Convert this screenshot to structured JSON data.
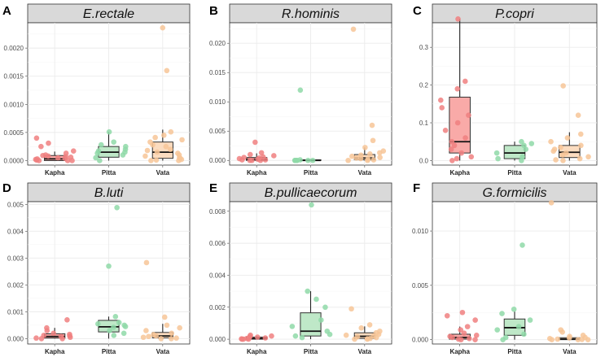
{
  "colors": {
    "Kapha": "#f08080",
    "Pitta": "#8fd9a8",
    "Vata": "#f7c598",
    "box_fill": {
      "Kapha": "#f9aaa8",
      "Pitta": "#bfe8c8",
      "Vata": "#fbdcc0"
    },
    "strip_fill": "#d9d9d9"
  },
  "chart_data": [
    {
      "type": "box",
      "letter": "A",
      "title": "E.rectale",
      "categories": [
        "Kapha",
        "Pitta",
        "Vata"
      ],
      "ylim": [
        -8e-05,
        0.00245
      ],
      "yticks": [
        0.0,
        0.0005,
        0.001,
        0.0015,
        0.002
      ],
      "ytick_labels": [
        "0.0000",
        "0.0005",
        "0.0010",
        "0.0015",
        "0.0020"
      ],
      "boxes": [
        {
          "group": "Kapha",
          "q1": 0.0,
          "median": 3e-05,
          "q3": 9e-05,
          "whisker_low": 0.0,
          "whisker_high": 0.00016
        },
        {
          "group": "Pitta",
          "q1": 6e-05,
          "median": 0.00015,
          "q3": 0.00025,
          "whisker_low": 0.0,
          "whisker_high": 0.00051
        },
        {
          "group": "Vata",
          "q1": 4e-05,
          "median": 0.00015,
          "q3": 0.00033,
          "whisker_low": 0.0,
          "whisker_high": 0.00055
        }
      ],
      "points": {
        "Kapha": [
          0.0,
          0.0,
          0.0,
          1e-05,
          2e-05,
          3e-05,
          4e-05,
          5e-05,
          6e-05,
          7e-05,
          8e-05,
          9e-05,
          0.0001,
          0.00013,
          0.00017,
          0.00025,
          0.00031,
          0.0004
        ],
        "Pitta": [
          0.0,
          5e-05,
          0.0001,
          0.00013,
          0.00015,
          0.00017,
          0.0002,
          0.00025,
          0.00028,
          0.00033,
          0.00051
        ],
        "Vata": [
          0.0,
          0.0,
          1e-05,
          2e-05,
          4e-05,
          5e-05,
          8e-05,
          0.0001,
          0.00013,
          0.00015,
          0.00018,
          0.0002,
          0.00025,
          0.00028,
          0.00033,
          0.00037,
          0.00041,
          0.00045,
          0.00051,
          0.0016,
          0.00236
        ]
      }
    },
    {
      "type": "box",
      "letter": "B",
      "title": "R.hominis",
      "categories": [
        "Kapha",
        "Pitta",
        "Vata"
      ],
      "ylim": [
        -0.0008,
        0.0235
      ],
      "yticks": [
        0.0,
        0.005,
        0.01,
        0.015,
        0.02
      ],
      "ytick_labels": [
        "0.000",
        "0.005",
        "0.010",
        "0.015",
        "0.020"
      ],
      "boxes": [
        {
          "group": "Kapha",
          "q1": 0.0,
          "median": 0.0002,
          "q3": 0.0005,
          "whisker_low": 0.0,
          "whisker_high": 0.0012
        },
        {
          "group": "Pitta",
          "q1": 0.0,
          "median": 0.0,
          "q3": 0.0001,
          "whisker_low": 0.0,
          "whisker_high": 0.0002
        },
        {
          "group": "Vata",
          "q1": 0.0001,
          "median": 0.0004,
          "q3": 0.001,
          "whisker_low": 0.0,
          "whisker_high": 0.0022
        }
      ],
      "points": {
        "Kapha": [
          0.0,
          0.0,
          0.0,
          0.0001,
          0.0001,
          0.0002,
          0.0003,
          0.0004,
          0.0005,
          0.0006,
          0.0008,
          0.001,
          0.0013,
          0.0031
        ],
        "Pitta": [
          0.0,
          0.0,
          0.0,
          0.0,
          0.0,
          0.0,
          0.0001,
          0.012
        ],
        "Vata": [
          0.0,
          0.0,
          0.0001,
          0.0002,
          0.0003,
          0.0004,
          0.0005,
          0.0007,
          0.0009,
          0.0011,
          0.0013,
          0.0016,
          0.0022,
          0.0034,
          0.006,
          0.0224
        ]
      }
    },
    {
      "type": "box",
      "letter": "C",
      "title": "P.copri",
      "categories": [
        "Kapha",
        "Pitta",
        "Vata"
      ],
      "ylim": [
        -0.012,
        0.365
      ],
      "yticks": [
        0.0,
        0.1,
        0.2,
        0.3
      ],
      "ytick_labels": [
        "0.0",
        "0.1",
        "0.2",
        "0.3"
      ],
      "boxes": [
        {
          "group": "Kapha",
          "q1": 0.02,
          "median": 0.05,
          "q3": 0.168,
          "whisker_low": 0.0,
          "whisker_high": 0.375
        },
        {
          "group": "Pitta",
          "q1": 0.005,
          "median": 0.02,
          "q3": 0.04,
          "whisker_low": 0.0,
          "whisker_high": 0.05
        },
        {
          "group": "Vata",
          "q1": 0.008,
          "median": 0.022,
          "q3": 0.04,
          "whisker_low": 0.0,
          "whisker_high": 0.075
        }
      ],
      "points": {
        "Kapha": [
          0.0,
          0.005,
          0.01,
          0.02,
          0.03,
          0.04,
          0.05,
          0.06,
          0.08,
          0.1,
          0.12,
          0.14,
          0.16,
          0.19,
          0.21,
          0.375
        ],
        "Pitta": [
          0.0,
          0.005,
          0.01,
          0.02,
          0.03,
          0.04,
          0.045,
          0.05
        ],
        "Vata": [
          0.0,
          0.002,
          0.005,
          0.01,
          0.015,
          0.02,
          0.025,
          0.03,
          0.035,
          0.04,
          0.05,
          0.06,
          0.07,
          0.12,
          0.198
        ]
      }
    },
    {
      "type": "box",
      "letter": "D",
      "title": "B.luti",
      "categories": [
        "Kapha",
        "Pitta",
        "Vata"
      ],
      "ylim": [
        -0.0002,
        0.0051
      ],
      "yticks": [
        0.0,
        0.001,
        0.002,
        0.003,
        0.004,
        0.005
      ],
      "ytick_labels": [
        "0.000",
        "0.001",
        "0.002",
        "0.003",
        "0.004",
        "0.005"
      ],
      "boxes": [
        {
          "group": "Kapha",
          "q1": 2e-05,
          "median": 8e-05,
          "q3": 0.00018,
          "whisker_low": 0.0,
          "whisker_high": 0.0004
        },
        {
          "group": "Pitta",
          "q1": 0.00025,
          "median": 0.00044,
          "q3": 0.00068,
          "whisker_low": 0.0,
          "whisker_high": 0.00082
        },
        {
          "group": "Vata",
          "q1": 3e-05,
          "median": 0.0001,
          "q3": 0.00023,
          "whisker_low": 0.0,
          "whisker_high": 0.00055
        }
      ],
      "points": {
        "Kapha": [
          0.0,
          0.0,
          2e-05,
          5e-05,
          8e-05,
          0.0001,
          0.00012,
          0.00016,
          0.0002,
          0.0003,
          0.0004,
          0.0007
        ],
        "Pitta": [
          0.00012,
          0.0002,
          0.0003,
          0.00042,
          0.00045,
          0.0005,
          0.00055,
          0.0006,
          0.00082,
          0.0027,
          0.00488
        ],
        "Vata": [
          0.0,
          0.0,
          2e-05,
          5e-05,
          8e-05,
          0.0001,
          0.00015,
          0.0002,
          0.0003,
          0.0004,
          0.0005,
          0.0008,
          0.00283
        ]
      }
    },
    {
      "type": "box",
      "letter": "E",
      "title": "B.pullicaecorum",
      "categories": [
        "Kapha",
        "Pitta",
        "Vata"
      ],
      "ylim": [
        -0.0003,
        0.0086
      ],
      "yticks": [
        0.0,
        0.002,
        0.004,
        0.006,
        0.008
      ],
      "ytick_labels": [
        "0.000",
        "0.002",
        "0.004",
        "0.006",
        "0.008"
      ],
      "boxes": [
        {
          "group": "Kapha",
          "q1": 0.0,
          "median": 5e-05,
          "q3": 0.00013,
          "whisker_low": 0.0,
          "whisker_high": 0.0002
        },
        {
          "group": "Pitta",
          "q1": 0.0002,
          "median": 0.0005,
          "q3": 0.00165,
          "whisker_low": 0.0,
          "whisker_high": 0.003
        },
        {
          "group": "Vata",
          "q1": 5e-05,
          "median": 0.00018,
          "q3": 0.0004,
          "whisker_low": 0.0,
          "whisker_high": 0.0008
        }
      ],
      "points": {
        "Kapha": [
          0.0,
          0.0,
          0.0,
          2e-05,
          5e-05,
          8e-05,
          0.0001,
          0.00013,
          0.00018,
          0.0002,
          0.00025
        ],
        "Pitta": [
          0.0001,
          0.0002,
          0.0003,
          0.0005,
          0.0008,
          0.0012,
          0.002,
          0.0025,
          0.003,
          0.0084
        ],
        "Vata": [
          0.0,
          0.0,
          3e-05,
          5e-05,
          0.0001,
          0.00015,
          0.0002,
          0.00025,
          0.0003,
          0.0004,
          0.0005,
          0.0007,
          0.0009,
          0.0019
        ]
      }
    },
    {
      "type": "box",
      "letter": "F",
      "title": "G.formicilis",
      "categories": [
        "Kapha",
        "Pitta",
        "Vata"
      ],
      "ylim": [
        -0.0004,
        0.0127
      ],
      "yticks": [
        0.0,
        0.005,
        0.01
      ],
      "ytick_labels": [
        "0.000",
        "0.005",
        "0.010"
      ],
      "boxes": [
        {
          "group": "Kapha",
          "q1": 5e-05,
          "median": 0.0002,
          "q3": 0.0005,
          "whisker_low": 0.0,
          "whisker_high": 0.0012
        },
        {
          "group": "Pitta",
          "q1": 0.0004,
          "median": 0.0011,
          "q3": 0.0019,
          "whisker_low": 0.0,
          "whisker_high": 0.0026
        },
        {
          "group": "Vata",
          "q1": 0.0,
          "median": 5e-05,
          "q3": 0.00018,
          "whisker_low": 0.0,
          "whisker_high": 0.0004
        }
      ],
      "points": {
        "Kapha": [
          0.0,
          0.0,
          5e-05,
          0.0001,
          0.0002,
          0.0003,
          0.0004,
          0.0006,
          0.0009,
          0.0012,
          0.0018,
          0.0022,
          0.0025
        ],
        "Pitta": [
          0.0,
          0.0002,
          0.0005,
          0.0009,
          0.0012,
          0.0018,
          0.0024,
          0.0028,
          0.0087
        ],
        "Vata": [
          0.0,
          0.0,
          0.0,
          2e-05,
          5e-05,
          0.0001,
          0.00015,
          0.0002,
          0.0003,
          0.0004,
          0.0007,
          0.0009,
          0.0126
        ]
      }
    }
  ]
}
